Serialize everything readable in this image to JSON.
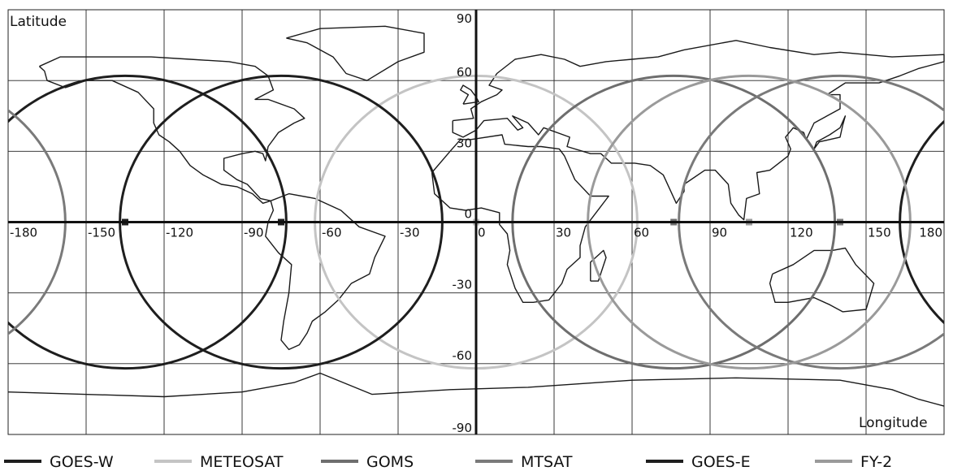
{
  "map": {
    "y_axis_label": "Latitude",
    "x_axis_label": "Longitude",
    "x_ticks": [
      -180,
      -150,
      -120,
      -90,
      -60,
      -30,
      0,
      30,
      60,
      90,
      120,
      150,
      180
    ],
    "y_ticks": [
      90,
      60,
      30,
      0,
      -30,
      -60,
      -90
    ],
    "x_range": [
      -180,
      180
    ],
    "y_range": [
      -90,
      90
    ],
    "grid": true
  },
  "satellites": [
    {
      "name": "GOES-W",
      "longitude": -135,
      "color": "#1e1e1e"
    },
    {
      "name": "METEOSAT",
      "longitude": 0,
      "color": "#c4c4c4"
    },
    {
      "name": "GOMS",
      "longitude": 76,
      "color": "#6e6e6e"
    },
    {
      "name": "MTSAT",
      "longitude": 140,
      "color": "#7a7a7a"
    },
    {
      "name": "GOES-E",
      "longitude": -75,
      "color": "#1e1e1e"
    },
    {
      "name": "FY-2",
      "longitude": 105,
      "color": "#9a9a9a"
    }
  ],
  "coverage_radius_deg": 62
}
